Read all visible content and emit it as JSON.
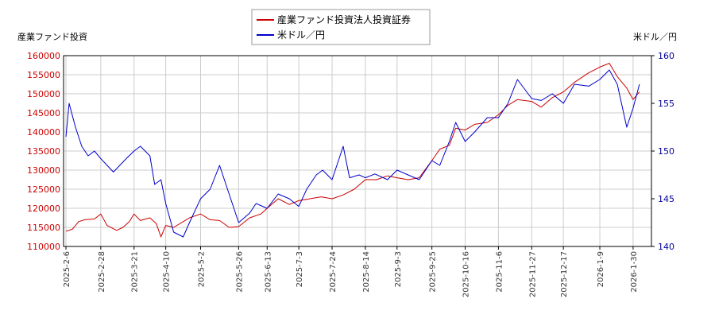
{
  "chart_data": {
    "type": "line",
    "left_axis_title": "産業ファンド投資",
    "right_axis_title": "米ドル／円",
    "ylim_left": [
      110000,
      160000
    ],
    "ylim_right": [
      140,
      160
    ],
    "yticks_left": [
      "110000",
      "115000",
      "120000",
      "125000",
      "130000",
      "135000",
      "140000",
      "145000",
      "150000",
      "155000",
      "160000"
    ],
    "yticks_right": [
      "140",
      "145",
      "150",
      "155",
      "160"
    ],
    "x_ticks": [
      "2025-2-6",
      "2025-2-28",
      "2025-3-21",
      "2025-4-10",
      "2025-5-2",
      "2025-5-26",
      "2025-6-13",
      "2025-7-3",
      "2025-7-24",
      "2025-8-14",
      "2025-9-3",
      "2025-9-25",
      "2025-10-16",
      "2025-11-6",
      "2025-11-27",
      "2025-12-17",
      "2026-1-9",
      "2026-1-30"
    ],
    "legend_position": "top-center",
    "grid": true,
    "series": [
      {
        "name": "産業ファンド投資法人投資証券",
        "axis": "left",
        "color": "#cc0000",
        "points": [
          [
            "2025-2-6",
            114000
          ],
          [
            "2025-2-10",
            114500
          ],
          [
            "2025-2-14",
            116500
          ],
          [
            "2025-2-18",
            117000
          ],
          [
            "2025-2-24",
            117200
          ],
          [
            "2025-2-28",
            118500
          ],
          [
            "2025-3-4",
            115500
          ],
          [
            "2025-3-10",
            114200
          ],
          [
            "2025-3-14",
            115000
          ],
          [
            "2025-3-18",
            116500
          ],
          [
            "2025-3-21",
            118500
          ],
          [
            "2025-3-25",
            116800
          ],
          [
            "2025-3-31",
            117500
          ],
          [
            "2025-4-4",
            116000
          ],
          [
            "2025-4-7",
            112500
          ],
          [
            "2025-4-10",
            115500
          ],
          [
            "2025-4-15",
            115000
          ],
          [
            "2025-4-21",
            116500
          ],
          [
            "2025-4-25",
            117500
          ],
          [
            "2025-5-2",
            118500
          ],
          [
            "2025-5-8",
            117000
          ],
          [
            "2025-5-14",
            116800
          ],
          [
            "2025-5-20",
            115000
          ],
          [
            "2025-5-26",
            115200
          ],
          [
            "2025-6-2",
            117500
          ],
          [
            "2025-6-9",
            118500
          ],
          [
            "2025-6-13",
            120000
          ],
          [
            "2025-6-20",
            122500
          ],
          [
            "2025-6-27",
            121000
          ],
          [
            "2025-7-3",
            122000
          ],
          [
            "2025-7-10",
            122500
          ],
          [
            "2025-7-17",
            123000
          ],
          [
            "2025-7-24",
            122500
          ],
          [
            "2025-7-31",
            123500
          ],
          [
            "2025-8-7",
            125000
          ],
          [
            "2025-8-14",
            127500
          ],
          [
            "2025-8-21",
            127500
          ],
          [
            "2025-8-28",
            128500
          ],
          [
            "2025-9-3",
            128000
          ],
          [
            "2025-9-10",
            127500
          ],
          [
            "2025-9-17",
            128000
          ],
          [
            "2025-9-25",
            132500
          ],
          [
            "2025-9-30",
            135500
          ],
          [
            "2025-10-6",
            136500
          ],
          [
            "2025-10-10",
            141000
          ],
          [
            "2025-10-16",
            140500
          ],
          [
            "2025-10-22",
            142000
          ],
          [
            "2025-10-30",
            142500
          ],
          [
            "2025-11-6",
            144500
          ],
          [
            "2025-11-12",
            147000
          ],
          [
            "2025-11-18",
            148500
          ],
          [
            "2025-11-27",
            148000
          ],
          [
            "2025-12-3",
            146500
          ],
          [
            "2025-12-10",
            149000
          ],
          [
            "2025-12-17",
            150500
          ],
          [
            "2025-12-24",
            153000
          ],
          [
            "2026-1-2",
            155500
          ],
          [
            "2026-1-9",
            157000
          ],
          [
            "2026-1-15",
            158000
          ],
          [
            "2026-1-20",
            154500
          ],
          [
            "2026-1-26",
            151500
          ],
          [
            "2026-1-30",
            148500
          ],
          [
            "2026-2-3",
            150500
          ]
        ]
      },
      {
        "name": "米ドル／円",
        "axis": "right",
        "color": "#0000cc",
        "points": [
          [
            "2025-2-6",
            151.5
          ],
          [
            "2025-2-8",
            155.0
          ],
          [
            "2025-2-12",
            152.5
          ],
          [
            "2025-2-16",
            150.5
          ],
          [
            "2025-2-20",
            149.5
          ],
          [
            "2025-2-24",
            150.0
          ],
          [
            "2025-2-28",
            149.2
          ],
          [
            "2025-3-4",
            148.5
          ],
          [
            "2025-3-8",
            147.8
          ],
          [
            "2025-3-12",
            148.5
          ],
          [
            "2025-3-16",
            149.2
          ],
          [
            "2025-3-21",
            150.0
          ],
          [
            "2025-3-25",
            150.5
          ],
          [
            "2025-3-31",
            149.5
          ],
          [
            "2025-4-3",
            146.5
          ],
          [
            "2025-4-7",
            147.0
          ],
          [
            "2025-4-10",
            144.5
          ],
          [
            "2025-4-15",
            141.5
          ],
          [
            "2025-4-21",
            141.0
          ],
          [
            "2025-4-25",
            142.5
          ],
          [
            "2025-5-2",
            145.0
          ],
          [
            "2025-5-8",
            146.0
          ],
          [
            "2025-5-14",
            148.5
          ],
          [
            "2025-5-20",
            145.5
          ],
          [
            "2025-5-26",
            142.5
          ],
          [
            "2025-6-2",
            143.5
          ],
          [
            "2025-6-6",
            144.5
          ],
          [
            "2025-6-13",
            144.0
          ],
          [
            "2025-6-20",
            145.5
          ],
          [
            "2025-6-27",
            145.0
          ],
          [
            "2025-7-3",
            144.2
          ],
          [
            "2025-7-8",
            146.0
          ],
          [
            "2025-7-14",
            147.5
          ],
          [
            "2025-7-18",
            148.0
          ],
          [
            "2025-7-24",
            147.0
          ],
          [
            "2025-7-31",
            150.5
          ],
          [
            "2025-8-4",
            147.2
          ],
          [
            "2025-8-10",
            147.5
          ],
          [
            "2025-8-14",
            147.2
          ],
          [
            "2025-8-20",
            147.6
          ],
          [
            "2025-8-28",
            147.0
          ],
          [
            "2025-9-3",
            148.0
          ],
          [
            "2025-9-10",
            147.5
          ],
          [
            "2025-9-17",
            147.0
          ],
          [
            "2025-9-25",
            149.0
          ],
          [
            "2025-9-30",
            148.5
          ],
          [
            "2025-10-6",
            151.0
          ],
          [
            "2025-10-10",
            153.0
          ],
          [
            "2025-10-16",
            151.0
          ],
          [
            "2025-10-22",
            152.0
          ],
          [
            "2025-10-30",
            153.5
          ],
          [
            "2025-11-6",
            153.5
          ],
          [
            "2025-11-12",
            155.0
          ],
          [
            "2025-11-18",
            157.5
          ],
          [
            "2025-11-27",
            155.5
          ],
          [
            "2025-12-3",
            155.3
          ],
          [
            "2025-12-10",
            156.0
          ],
          [
            "2025-12-17",
            155.0
          ],
          [
            "2025-12-24",
            157.0
          ],
          [
            "2026-1-2",
            156.8
          ],
          [
            "2026-1-9",
            157.5
          ],
          [
            "2026-1-15",
            158.5
          ],
          [
            "2026-1-20",
            157.0
          ],
          [
            "2026-1-26",
            152.5
          ],
          [
            "2026-1-30",
            154.5
          ],
          [
            "2026-2-3",
            157.0
          ]
        ]
      }
    ]
  }
}
